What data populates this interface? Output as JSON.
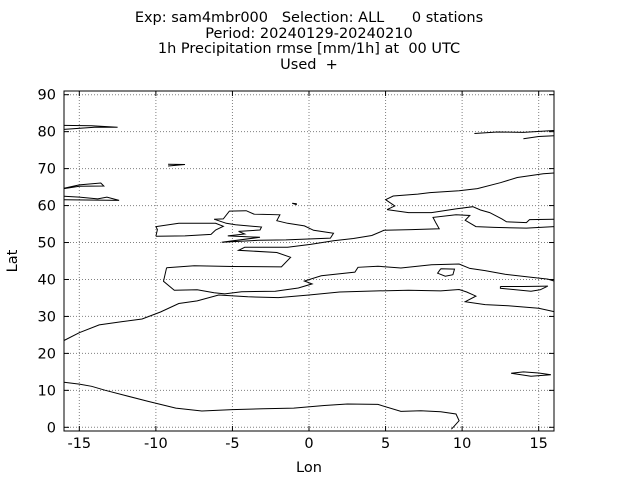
{
  "title": {
    "line1": "Exp: sam4mbr000   Selection: ALL      0 stations",
    "line2": "Period: 20240129-20240210",
    "line3": "1h Precipitation rmse [mm/1h] at  00 UTC",
    "line4": "Used  +"
  },
  "chart_data": {
    "type": "map",
    "xlabel": "Lon",
    "ylabel": "Lat",
    "xlim": [
      -16,
      16
    ],
    "ylim": [
      -1,
      91
    ],
    "xticks": [
      -15,
      -10,
      -5,
      0,
      5,
      10,
      15
    ],
    "yticks": [
      0,
      10,
      20,
      30,
      40,
      50,
      60,
      70,
      80,
      90
    ],
    "xtick_labels": [
      "-15",
      "-10",
      "-5",
      "0",
      "5",
      "10",
      "15"
    ],
    "ytick_labels": [
      "0",
      "10",
      "20",
      "30",
      "40",
      "50",
      "60",
      "70",
      "80",
      "90"
    ],
    "grid": true,
    "stations": 0,
    "coastlines": [
      [
        [
          -16,
          62.5
        ],
        [
          -15,
          62.3
        ],
        [
          -13.8,
          61.8
        ],
        [
          -13.2,
          62.3
        ],
        [
          -12.4,
          61.4
        ],
        [
          -16,
          61.6
        ]
      ],
      [
        [
          -16,
          64.7
        ],
        [
          -15,
          65.6
        ],
        [
          -13.6,
          66.1
        ],
        [
          -13.4,
          65.3
        ],
        [
          -15,
          65.2
        ],
        [
          -16,
          64.6
        ]
      ],
      [
        [
          -16,
          80.6
        ],
        [
          -14,
          81.2
        ],
        [
          -12.5,
          81.2
        ],
        [
          -14.2,
          81.6
        ],
        [
          -16,
          81.7
        ]
      ],
      [
        [
          -9.2,
          70.7
        ],
        [
          -8.1,
          71.1
        ],
        [
          -9.2,
          71.2
        ]
      ],
      [
        [
          -16,
          23.5
        ],
        [
          -15,
          25.6
        ],
        [
          -13.7,
          27.7
        ],
        [
          -12.2,
          28.6
        ],
        [
          -10.9,
          29.3
        ],
        [
          -9.7,
          31.2
        ],
        [
          -8.5,
          33.5
        ],
        [
          -7.3,
          34.2
        ],
        [
          -5.9,
          35.8
        ],
        [
          -4,
          35.3
        ],
        [
          -2,
          35.1
        ],
        [
          0,
          35.8
        ],
        [
          2,
          36.6
        ],
        [
          4.5,
          36.9
        ],
        [
          6.5,
          37.1
        ],
        [
          8.6,
          36.9
        ],
        [
          9.8,
          37.3
        ],
        [
          10.3,
          36.6
        ],
        [
          10.9,
          35.5
        ],
        [
          10.2,
          34
        ],
        [
          11.5,
          33.2
        ],
        [
          13,
          32.9
        ],
        [
          15,
          32.2
        ],
        [
          16,
          31.3
        ]
      ],
      [
        [
          -16,
          12.2
        ],
        [
          -15,
          11.7
        ],
        [
          -14.2,
          11.1
        ],
        [
          -13.3,
          10
        ],
        [
          -12,
          8.6
        ],
        [
          -10.5,
          7
        ],
        [
          -8.7,
          5.2
        ],
        [
          -7,
          4.4
        ],
        [
          -5,
          4.8
        ],
        [
          -3,
          5.0
        ],
        [
          -1,
          5.2
        ],
        [
          1,
          5.9
        ],
        [
          2.5,
          6.3
        ],
        [
          4.5,
          6.2
        ],
        [
          6,
          4.3
        ],
        [
          7.3,
          4.5
        ],
        [
          8.6,
          4.2
        ],
        [
          9.6,
          3.6
        ],
        [
          9.8,
          1.8
        ],
        [
          9.5,
          0.4
        ],
        [
          9.3,
          -0.5
        ]
      ],
      [
        [
          -9.3,
          43.2
        ],
        [
          -9.5,
          39.5
        ],
        [
          -8.8,
          37.1
        ],
        [
          -7.3,
          37.2
        ],
        [
          -6.2,
          36.4
        ],
        [
          -5.5,
          36.1
        ],
        [
          -4.4,
          36.7
        ],
        [
          -2.2,
          36.8
        ],
        [
          -0.7,
          37.7
        ],
        [
          0.2,
          38.8
        ],
        [
          -0.3,
          39.6
        ],
        [
          0.8,
          41
        ],
        [
          3,
          42
        ],
        [
          3.2,
          43.3
        ],
        [
          4.5,
          43.6
        ],
        [
          6,
          43.1
        ],
        [
          8,
          44
        ],
        [
          9.8,
          44.2
        ],
        [
          10.5,
          43
        ],
        [
          11.5,
          42.4
        ],
        [
          12.8,
          41.4
        ],
        [
          14.5,
          40.6
        ],
        [
          15.6,
          40.1
        ],
        [
          16,
          39.6
        ]
      ],
      [
        [
          -9.3,
          43.2
        ],
        [
          -7.5,
          43.7
        ],
        [
          -5,
          43.5
        ],
        [
          -1.8,
          43.4
        ],
        [
          -1.2,
          46
        ],
        [
          -2.1,
          47.3
        ],
        [
          -4.6,
          47.9
        ],
        [
          -4.2,
          48.7
        ],
        [
          -1.4,
          48.7
        ],
        [
          0.1,
          49.5
        ],
        [
          1.6,
          50.5
        ],
        [
          2.9,
          51.1
        ],
        [
          4.1,
          51.9
        ],
        [
          4.9,
          53.3
        ],
        [
          6.7,
          53.5
        ],
        [
          8.5,
          53.7
        ],
        [
          8.3,
          55.2
        ],
        [
          8.1,
          56.8
        ],
        [
          9.6,
          57.5
        ],
        [
          10.5,
          57.3
        ],
        [
          10.2,
          56
        ],
        [
          10.9,
          54.3
        ],
        [
          12.1,
          54.1
        ],
        [
          14.2,
          53.9
        ],
        [
          16,
          54.3
        ]
      ],
      [
        [
          -5.7,
          50.1
        ],
        [
          -3.3,
          50.6
        ],
        [
          -1.5,
          50.7
        ],
        [
          1.4,
          51.2
        ],
        [
          1.6,
          52.5
        ],
        [
          0.3,
          53.3
        ],
        [
          -0.3,
          54.5
        ],
        [
          -1.4,
          55.2
        ],
        [
          -2.1,
          55.9
        ],
        [
          -1.9,
          57.5
        ],
        [
          -3.6,
          57.7
        ],
        [
          -4.1,
          58.6
        ],
        [
          -5.2,
          58.5
        ],
        [
          -5.6,
          56.4
        ],
        [
          -6.2,
          56.3
        ],
        [
          -5.4,
          55.2
        ],
        [
          -4.8,
          54.8
        ],
        [
          -3.1,
          54.2
        ],
        [
          -3.2,
          53.4
        ],
        [
          -4.6,
          53.0
        ],
        [
          -4.2,
          52.3
        ],
        [
          -5.3,
          51.8
        ],
        [
          -3.2,
          51.4
        ],
        [
          -5.7,
          50.1
        ]
      ],
      [
        [
          -10,
          51.7
        ],
        [
          -9.9,
          53.5
        ],
        [
          -10,
          54.3
        ],
        [
          -8.5,
          55.2
        ],
        [
          -6.1,
          55.2
        ],
        [
          -5.6,
          54.4
        ],
        [
          -6.1,
          53.4
        ],
        [
          -6.4,
          52.2
        ],
        [
          -8.1,
          51.8
        ],
        [
          -10,
          51.7
        ]
      ],
      [
        [
          5.1,
          58.9
        ],
        [
          5.6,
          59.9
        ],
        [
          5,
          61.6
        ],
        [
          5.5,
          62.6
        ],
        [
          7.1,
          63.1
        ],
        [
          7.9,
          63.5
        ],
        [
          9.8,
          64
        ],
        [
          11,
          64.6
        ],
        [
          12.5,
          66.2
        ],
        [
          13.6,
          67.6
        ],
        [
          15.3,
          68.6
        ],
        [
          16,
          68.8
        ]
      ],
      [
        [
          5.1,
          58.9
        ],
        [
          6.5,
          58.1
        ],
        [
          8,
          58.1
        ],
        [
          9.6,
          59.1
        ],
        [
          10.7,
          59.7
        ],
        [
          11.2,
          58.8
        ],
        [
          11.8,
          58.1
        ],
        [
          12.6,
          56.4
        ],
        [
          12.9,
          55.6
        ],
        [
          14.2,
          55.4
        ],
        [
          14.4,
          56.2
        ],
        [
          16,
          56.3
        ]
      ],
      [
        [
          -0.8,
          60.2
        ],
        [
          -1.1,
          60.6
        ],
        [
          -0.8,
          60.5
        ]
      ],
      [
        [
          14,
          78.1
        ],
        [
          15,
          78.7
        ],
        [
          16,
          78.9
        ]
      ],
      [
        [
          10.8,
          79.5
        ],
        [
          12.3,
          79.9
        ],
        [
          14,
          79.8
        ],
        [
          16,
          80.3
        ]
      ],
      [
        [
          8.6,
          42.9
        ],
        [
          9.5,
          42.8
        ],
        [
          9.4,
          41.3
        ],
        [
          8.9,
          40.9
        ],
        [
          8.4,
          41.7
        ],
        [
          8.6,
          42.9
        ]
      ],
      [
        [
          12.5,
          38.1
        ],
        [
          14,
          38.1
        ],
        [
          15.6,
          38.2
        ],
        [
          15.1,
          37.2
        ],
        [
          14.5,
          36.8
        ],
        [
          12.5,
          37.6
        ],
        [
          12.5,
          38.1
        ]
      ],
      [
        [
          13.2,
          14.6
        ],
        [
          14,
          15.0
        ],
        [
          15,
          14.7
        ],
        [
          15.8,
          14.2
        ],
        [
          14.5,
          13.8
        ],
        [
          13.2,
          14.6
        ]
      ]
    ]
  }
}
